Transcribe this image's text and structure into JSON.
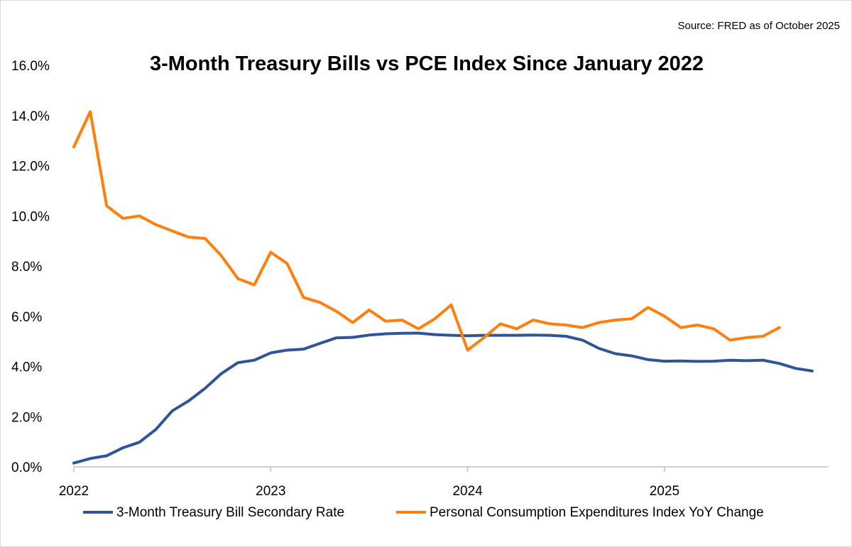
{
  "chart_data": {
    "type": "line",
    "title": "3-Month Treasury Bills vs PCE Index Since January 2022",
    "source": "Source: FRED as of October 2025",
    "xlabel": "",
    "ylabel": "",
    "ylim": [
      0,
      16
    ],
    "y_ticks": [
      "0.0%",
      "2.0%",
      "4.0%",
      "6.0%",
      "8.0%",
      "10.0%",
      "12.0%",
      "14.0%",
      "16.0%"
    ],
    "y_tick_values": [
      0,
      2,
      4,
      6,
      8,
      10,
      12,
      14,
      16
    ],
    "x_ticks": [
      "2022",
      "2023",
      "2024",
      "2025"
    ],
    "x_tick_positions": [
      0,
      12,
      24,
      36
    ],
    "x_range": [
      0,
      46
    ],
    "grid": false,
    "legend_position": "bottom",
    "series": [
      {
        "name": "3-Month Treasury Bill Secondary Rate",
        "color": "#2f5597",
        "x": [
          0,
          1,
          2,
          3,
          4,
          5,
          6,
          7,
          8,
          9,
          10,
          11,
          12,
          13,
          14,
          15,
          16,
          17,
          18,
          19,
          20,
          21,
          22,
          23,
          24,
          25,
          26,
          27,
          28,
          29,
          30,
          31,
          32,
          33,
          34,
          35,
          36,
          37,
          38,
          39,
          40,
          41,
          42,
          43,
          44,
          45
        ],
        "values": [
          0.15,
          0.33,
          0.44,
          0.76,
          0.98,
          1.49,
          2.23,
          2.63,
          3.13,
          3.72,
          4.15,
          4.25,
          4.54,
          4.65,
          4.69,
          4.92,
          5.14,
          5.16,
          5.25,
          5.3,
          5.32,
          5.33,
          5.27,
          5.24,
          5.22,
          5.24,
          5.24,
          5.24,
          5.25,
          5.24,
          5.2,
          5.05,
          4.72,
          4.51,
          4.42,
          4.27,
          4.21,
          4.22,
          4.2,
          4.21,
          4.25,
          4.23,
          4.25,
          4.12,
          3.92,
          3.82
        ]
      },
      {
        "name": "Personal Consumption Expenditures Index YoY Change",
        "color": "#ff7f0e",
        "x": [
          0,
          1,
          2,
          3,
          4,
          5,
          6,
          7,
          8,
          9,
          10,
          11,
          12,
          13,
          14,
          15,
          16,
          17,
          18,
          19,
          20,
          21,
          22,
          23,
          24,
          25,
          26,
          27,
          28,
          29,
          30,
          31,
          32,
          33,
          34,
          35,
          36,
          37,
          38,
          39,
          40,
          41,
          42,
          43
        ],
        "values": [
          12.75,
          14.15,
          10.4,
          9.9,
          10.0,
          9.65,
          9.4,
          9.15,
          9.1,
          8.4,
          7.5,
          7.25,
          8.55,
          8.1,
          6.75,
          6.55,
          6.2,
          5.75,
          6.25,
          5.8,
          5.85,
          5.5,
          5.9,
          6.45,
          4.65,
          5.15,
          5.7,
          5.5,
          5.85,
          5.7,
          5.65,
          5.55,
          5.75,
          5.85,
          5.9,
          6.35,
          6.0,
          5.55,
          5.65,
          5.5,
          5.05,
          5.15,
          5.2,
          5.55
        ]
      }
    ]
  }
}
